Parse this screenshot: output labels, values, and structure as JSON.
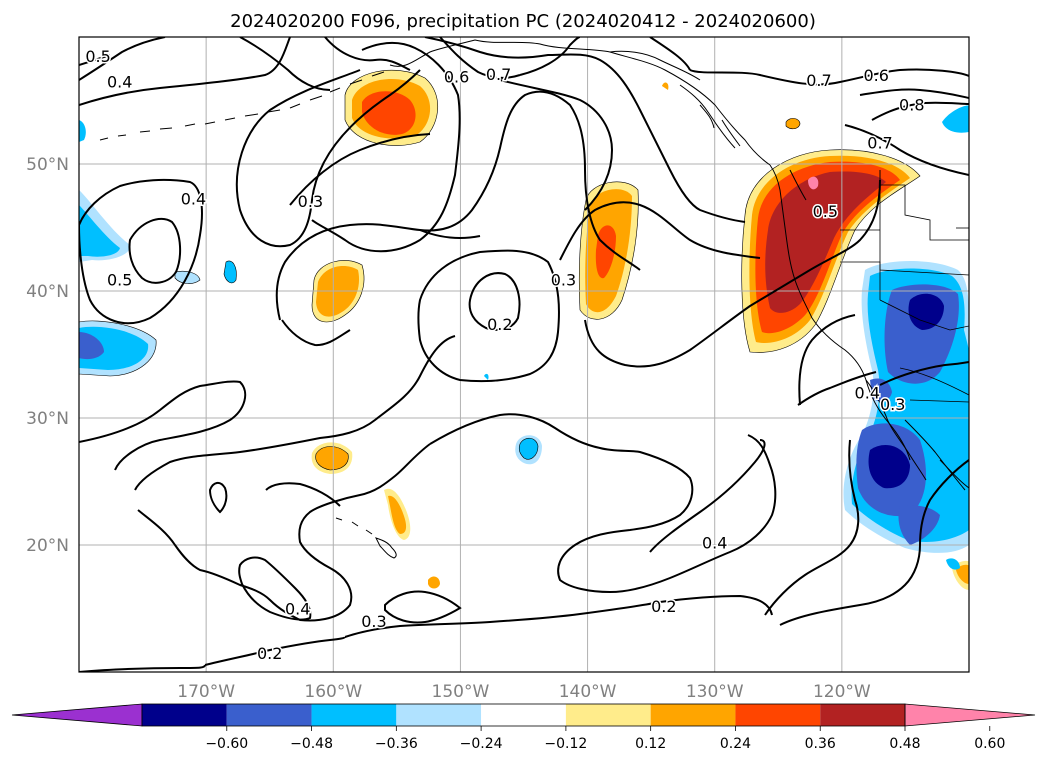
{
  "title": "2024020200 F096, precipitation PC (2024020412 - 2024020600)",
  "map": {
    "projection": "plate-carree",
    "lon_range": [
      -180,
      -110
    ],
    "lat_range": [
      10,
      60
    ],
    "grid": true,
    "lat_labels": [
      {
        "lat": 50,
        "label": "50°N"
      },
      {
        "lat": 40,
        "label": "40°N"
      },
      {
        "lat": 30,
        "label": "30°N"
      },
      {
        "lat": 20,
        "label": "20°N"
      }
    ],
    "lon_labels": [
      {
        "lon": -170,
        "label": "170°W"
      },
      {
        "lon": -160,
        "label": "160°W"
      },
      {
        "lon": -150,
        "label": "150°W"
      },
      {
        "lon": -140,
        "label": "140°W"
      },
      {
        "lon": -130,
        "label": "130°W"
      },
      {
        "lon": -120,
        "label": "120°W"
      }
    ]
  },
  "colorbar": {
    "ticks": [
      "−0.60",
      "−0.48",
      "−0.36",
      "−0.24",
      "−0.12",
      "0.12",
      "0.24",
      "0.36",
      "0.48",
      "0.60"
    ],
    "bins": [
      {
        "range": "< -0.60",
        "color": "#9b30d0"
      },
      {
        "range": "-0.60 to -0.48",
        "color": "#00008b"
      },
      {
        "range": "-0.48 to -0.36",
        "color": "#3a5fcd"
      },
      {
        "range": "-0.36 to -0.24",
        "color": "#00bfff"
      },
      {
        "range": "-0.24 to -0.12",
        "color": "#b0e2ff"
      },
      {
        "range": "-0.12 to 0.12",
        "color": "#ffffff"
      },
      {
        "range": "0.12 to 0.24",
        "color": "#ffec8b"
      },
      {
        "range": "0.24 to 0.36",
        "color": "#ffa500"
      },
      {
        "range": "0.36 to 0.48",
        "color": "#ff4500"
      },
      {
        "range": "0.48 to 0.60",
        "color": "#b22222"
      },
      {
        "range": "> 0.60",
        "color": "#ff83aa"
      }
    ]
  },
  "contour_labels": [
    {
      "text": "0.5",
      "lon": -178.5,
      "lat": 58.5
    },
    {
      "text": "0.4",
      "lon": -176.8,
      "lat": 56.5
    },
    {
      "text": "0.6",
      "lon": -150.3,
      "lat": 56.9
    },
    {
      "text": "0.7",
      "lon": -147.0,
      "lat": 57.1
    },
    {
      "text": "0.7",
      "lon": -121.8,
      "lat": 56.6
    },
    {
      "text": "0.6",
      "lon": -117.3,
      "lat": 57.0
    },
    {
      "text": "0.8",
      "lon": -114.5,
      "lat": 54.7
    },
    {
      "text": "0.7",
      "lon": -117.0,
      "lat": 51.7
    },
    {
      "text": "0.4",
      "lon": -171.0,
      "lat": 47.3
    },
    {
      "text": "0.3",
      "lon": -161.8,
      "lat": 47.1
    },
    {
      "text": "0.5",
      "lon": -121.3,
      "lat": 46.3
    },
    {
      "text": "0.5",
      "lon": -176.8,
      "lat": 40.9
    },
    {
      "text": "0.3",
      "lon": -141.9,
      "lat": 40.9
    },
    {
      "text": "0.2",
      "lon": -146.9,
      "lat": 37.4
    },
    {
      "text": "0.4",
      "lon": -118.0,
      "lat": 32.0
    },
    {
      "text": "0.3",
      "lon": -116.0,
      "lat": 31.1
    },
    {
      "text": "0.4",
      "lon": -130.0,
      "lat": 20.2
    },
    {
      "text": "0.4",
      "lon": -162.8,
      "lat": 15.0
    },
    {
      "text": "0.3",
      "lon": -156.8,
      "lat": 14.0
    },
    {
      "text": "0.2",
      "lon": -134.0,
      "lat": 15.2
    },
    {
      "text": "0.2",
      "lon": -165.0,
      "lat": 11.5
    }
  ]
}
